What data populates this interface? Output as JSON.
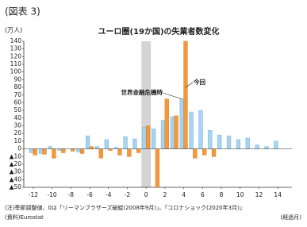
{
  "header": "(図表 3)",
  "chart_data": {
    "type": "bar",
    "title": "ユーロ圏(19か国)の失業者数変化",
    "y_label": "(万人)",
    "x_label": "(経過月)",
    "x": [
      -12,
      -11,
      -10,
      -9,
      -8,
      -7,
      -6,
      -5,
      -4,
      -3,
      -2,
      -1,
      0,
      1,
      2,
      3,
      4,
      5,
      6,
      7,
      8,
      9,
      10,
      11,
      12,
      13,
      14
    ],
    "series": [
      {
        "name": "世界金融危機時",
        "color": "#a9d3ee",
        "values": [
          -5,
          -6,
          3,
          -2,
          0,
          -4,
          17,
          3,
          12,
          2,
          16,
          13,
          28,
          26,
          37,
          42,
          65,
          48,
          50,
          24,
          18,
          17,
          12,
          14,
          5,
          3,
          10
        ]
      },
      {
        "name": "今回",
        "color": "#f29a3b",
        "values": [
          -8,
          -7,
          -12,
          -5,
          -3,
          -6,
          3,
          -12,
          -2,
          -8,
          -10,
          -5,
          30,
          -50,
          65,
          43,
          140,
          -12,
          -8,
          -10,
          null,
          null,
          null,
          null,
          null,
          null,
          null
        ]
      }
    ],
    "xlim": [
      -13,
      15.5
    ],
    "xticks": [
      -12,
      -10,
      -8,
      -6,
      -4,
      -2,
      0,
      2,
      4,
      6,
      8,
      10,
      12,
      14
    ],
    "ylim": [
      -50,
      140
    ],
    "yticks": [
      {
        "value": -50,
        "label": "▲50"
      },
      {
        "value": -40,
        "label": "▲40"
      },
      {
        "value": -30,
        "label": "▲30"
      },
      {
        "value": -20,
        "label": "▲20"
      },
      {
        "value": -10,
        "label": "▲10"
      },
      0,
      10,
      20,
      30,
      40,
      50,
      60,
      70,
      80,
      90,
      100,
      110,
      120,
      130,
      140
    ],
    "highlight_x": 0,
    "grid": false,
    "notes": [
      "(注)季節調整値、0は「リーマンブラザーズ破綻(2008年9月)」、「コロナショック(2020年3月)」",
      "(資料)Eurostat"
    ]
  }
}
